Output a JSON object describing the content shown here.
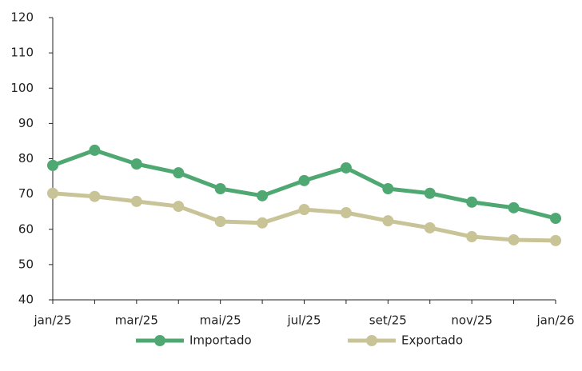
{
  "chart_data": {
    "type": "line",
    "categories": [
      "jan/25",
      null,
      "mar/25",
      null,
      "mai/25",
      null,
      "jul/25",
      null,
      "set/25",
      null,
      "nov/25",
      null,
      "jan/26"
    ],
    "series": [
      {
        "name": "Importado",
        "color": "#4fa872",
        "values": [
          78.1,
          82.4,
          78.5,
          76,
          71.5,
          69.5,
          73.8,
          77.4,
          71.5,
          70.2,
          67.7,
          66.1,
          63.1
        ]
      },
      {
        "name": "Exportado",
        "color": "#c9c398",
        "values": [
          70.2,
          69.3,
          67.9,
          66.5,
          62.2,
          61.8,
          65.6,
          64.7,
          62.4,
          60.4,
          57.9,
          57,
          56.8
        ]
      }
    ],
    "ylim": [
      40,
      120
    ],
    "yticks": [
      40,
      50,
      60,
      70,
      80,
      90,
      100,
      110,
      120
    ],
    "grid": false,
    "legend": "bottom"
  }
}
